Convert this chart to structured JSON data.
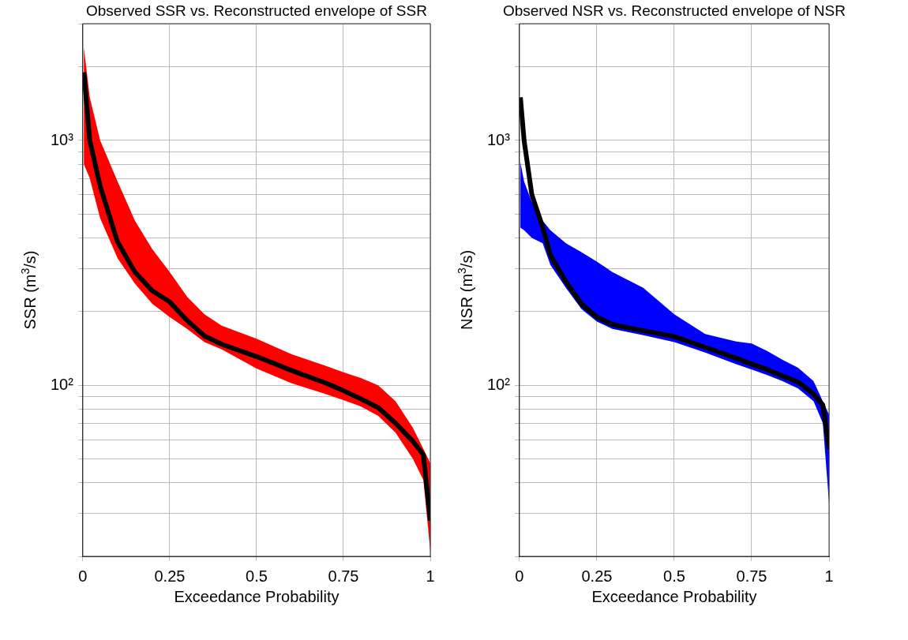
{
  "chart_data": [
    {
      "type": "line",
      "title": "Observed SSR vs. Reconstructed envelope of SSR",
      "xlabel": "Exceedance Probability",
      "ylabel": "SSR (m$^{3}$/s)",
      "log": "y",
      "grid": true,
      "line_style": "solid",
      "xlim": [
        0,
        1
      ],
      "xticks": [
        0,
        0.25,
        0.5,
        0.75,
        1
      ],
      "ylim": [
        20,
        3000
      ],
      "yticks": [
        {
          "value": 20,
          "label": null
        },
        {
          "value": 30,
          "label": null
        },
        {
          "value": 40,
          "label": null
        },
        {
          "value": 50,
          "label": null
        },
        {
          "value": 60,
          "label": null
        },
        {
          "value": 70,
          "label": null
        },
        {
          "value": 80,
          "label": null
        },
        {
          "value": 90,
          "label": null
        },
        {
          "value": 100,
          "label": "10²"
        },
        {
          "value": 200,
          "label": null
        },
        {
          "value": 300,
          "label": null
        },
        {
          "value": 400,
          "label": null
        },
        {
          "value": 500,
          "label": null
        },
        {
          "value": 600,
          "label": null
        },
        {
          "value": 700,
          "label": null
        },
        {
          "value": 800,
          "label": null
        },
        {
          "value": 900,
          "label": null
        },
        {
          "value": 1000,
          "label": "10³"
        },
        {
          "value": 2000,
          "label": null
        },
        {
          "value": 3000,
          "label": null
        }
      ],
      "series": [
        {
          "color": "#ff0000",
          "x": [
            0.003,
            0.02,
            0.05,
            0.1,
            0.15,
            0.2,
            0.25,
            0.3,
            0.35,
            0.4,
            0.5,
            0.6,
            0.7,
            0.75,
            0.8,
            0.85,
            0.9,
            0.95,
            0.98,
            1
          ],
          "values": [
            null,
            null,
            null,
            null,
            null,
            null,
            null,
            null,
            null,
            null,
            null,
            null,
            null,
            null,
            null,
            null,
            null,
            null,
            null,
            null
          ],
          "upper": [
            2400,
            1500,
            1000,
            680,
            470,
            360,
            290,
            230,
            195,
            175,
            155,
            134,
            120,
            113,
            107,
            100,
            86,
            67,
            55,
            48
          ],
          "lower": [
            800,
            700,
            480,
            330,
            260,
            215,
            190,
            170,
            150,
            140,
            117,
            102,
            92,
            87,
            82,
            75,
            64,
            50,
            41,
            21
          ]
        },
        {
          "color": "#000000",
          "x": [
            0.003,
            0.02,
            0.05,
            0.1,
            0.15,
            0.2,
            0.25,
            0.3,
            0.35,
            0.4,
            0.5,
            0.6,
            0.7,
            0.75,
            0.8,
            0.85,
            0.9,
            0.95,
            0.98,
            1
          ],
          "values": [
            1900,
            1000,
            650,
            385,
            290,
            243,
            219,
            184,
            159,
            147,
            131,
            115,
            102,
            95,
            88,
            81,
            70,
            59,
            52,
            28
          ]
        }
      ]
    },
    {
      "type": "line",
      "title": "Observed NSR vs. Reconstructed envelope of NSR",
      "xlabel": "Exceedance Probability",
      "ylabel": "NSR (m$^{3}$/s)",
      "log": "y",
      "grid": true,
      "line_style": "solid",
      "xlim": [
        0,
        1
      ],
      "xticks": [
        0,
        0.25,
        0.5,
        0.75,
        1
      ],
      "ylim": [
        20,
        3000
      ],
      "yticks": [
        {
          "value": 20,
          "label": null
        },
        {
          "value": 30,
          "label": null
        },
        {
          "value": 40,
          "label": null
        },
        {
          "value": 50,
          "label": null
        },
        {
          "value": 60,
          "label": null
        },
        {
          "value": 70,
          "label": null
        },
        {
          "value": 80,
          "label": null
        },
        {
          "value": 90,
          "label": null
        },
        {
          "value": 100,
          "label": "10²"
        },
        {
          "value": 200,
          "label": null
        },
        {
          "value": 300,
          "label": null
        },
        {
          "value": 400,
          "label": null
        },
        {
          "value": 500,
          "label": null
        },
        {
          "value": 600,
          "label": null
        },
        {
          "value": 700,
          "label": null
        },
        {
          "value": 800,
          "label": null
        },
        {
          "value": 900,
          "label": null
        },
        {
          "value": 1000,
          "label": "10³"
        },
        {
          "value": 2000,
          "label": null
        },
        {
          "value": 3000,
          "label": null
        }
      ],
      "series": [
        {
          "color": "#0000ff",
          "x": [
            0.003,
            0.015,
            0.04,
            0.075,
            0.1,
            0.15,
            0.2,
            0.25,
            0.3,
            0.4,
            0.5,
            0.6,
            0.7,
            0.75,
            0.8,
            0.85,
            0.9,
            0.95,
            0.98,
            1
          ],
          "values": [
            null,
            null,
            null,
            null,
            null,
            null,
            null,
            null,
            null,
            null,
            null,
            null,
            null,
            null,
            null,
            null,
            null,
            null,
            null,
            null
          ],
          "upper": [
            815,
            680,
            560,
            470,
            430,
            380,
            350,
            320,
            290,
            250,
            195,
            162,
            151,
            148,
            138,
            127,
            118,
            104,
            86,
            76
          ],
          "lower": [
            440,
            430,
            400,
            380,
            310,
            250,
            205,
            182,
            170,
            160,
            150,
            136,
            122,
            116,
            110,
            104,
            97,
            86,
            70,
            33
          ]
        },
        {
          "color": "#000000",
          "x": [
            0.003,
            0.015,
            0.04,
            0.075,
            0.1,
            0.15,
            0.2,
            0.25,
            0.3,
            0.4,
            0.5,
            0.6,
            0.7,
            0.75,
            0.8,
            0.85,
            0.9,
            0.95,
            0.98,
            1
          ],
          "values": [
            1500,
            1000,
            600,
            443,
            340,
            265,
            215,
            190,
            177,
            167,
            158,
            143,
            129,
            122,
            116,
            109,
            103,
            92,
            83,
            55
          ]
        }
      ]
    }
  ]
}
